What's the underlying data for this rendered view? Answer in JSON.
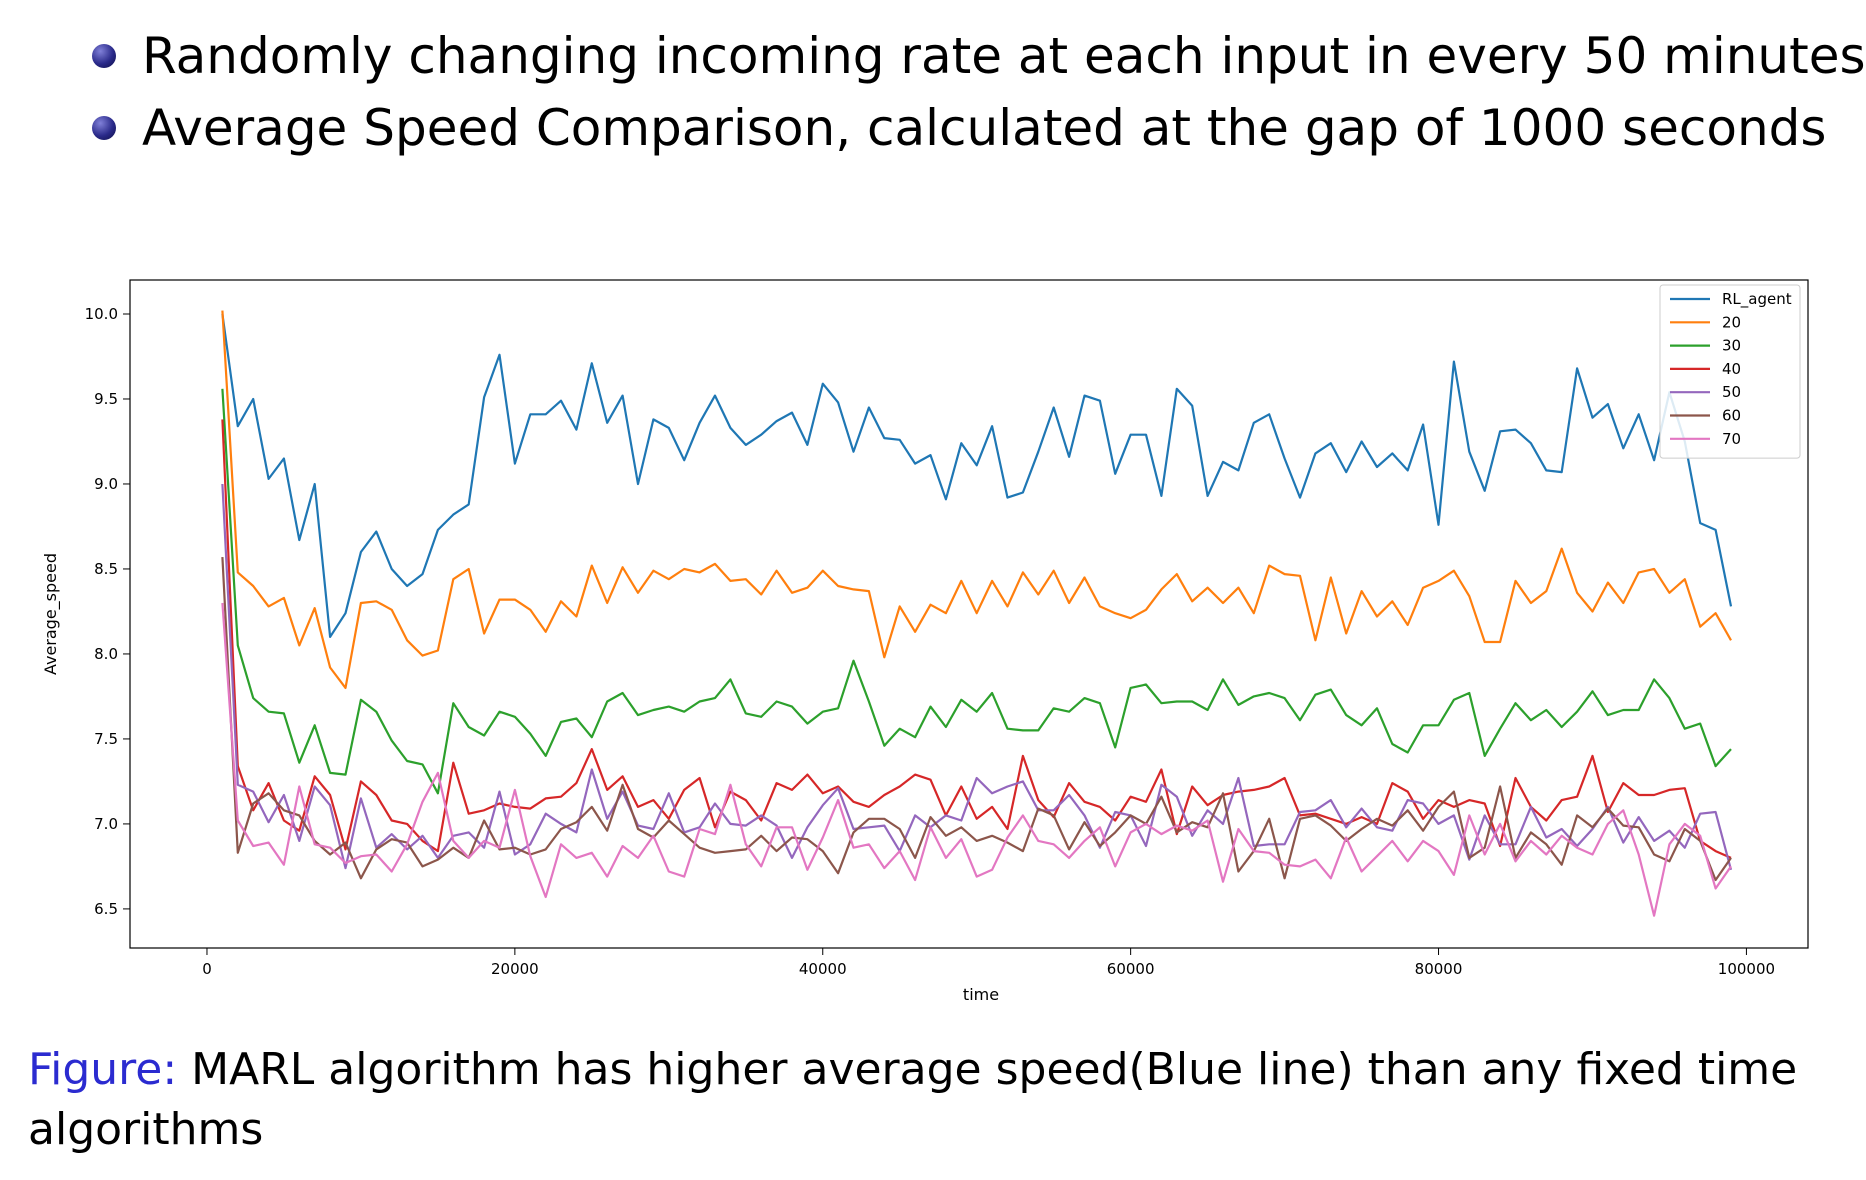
{
  "bullets": [
    "Randomly changing incoming rate at each input in every 50 minutes",
    "Average Speed Comparison, calculated at the gap of 1000 seconds"
  ],
  "caption": {
    "label": "Figure:",
    "text": "MARL algorithm has higher average speed(Blue line) than any fixed time algorithms"
  },
  "chart_data": {
    "type": "line",
    "xlabel": "time",
    "ylabel": "Average_speed",
    "xlim": [
      -5000,
      104000
    ],
    "ylim": [
      6.27,
      10.2
    ],
    "xticks": [
      0,
      20000,
      40000,
      60000,
      80000,
      100000
    ],
    "yticks": [
      6.5,
      7.0,
      7.5,
      8.0,
      8.5,
      9.0,
      9.5,
      10.0
    ],
    "ytick_labels": [
      "6.5",
      "7.0",
      "7.5",
      "8.0",
      "8.5",
      "9.0",
      "9.5",
      "10.0"
    ],
    "grid": false,
    "legend_position": "top-right",
    "x_start": 1000,
    "x_step": 1000,
    "series": [
      {
        "name": "RL_agent",
        "color": "#1f77b4",
        "values": [
          10.0,
          9.34,
          9.5,
          9.03,
          9.15,
          8.67,
          9.0,
          8.1,
          8.24,
          8.6,
          8.72,
          8.5,
          8.4,
          8.47,
          8.73,
          8.82,
          8.88,
          9.51,
          9.76,
          9.12,
          9.41,
          9.41,
          9.49,
          9.32,
          9.71,
          9.36,
          9.52,
          9.0,
          9.38,
          9.33,
          9.14,
          9.36,
          9.52,
          9.33,
          9.23,
          9.29,
          9.37,
          9.42,
          9.23,
          9.59,
          9.48,
          9.19,
          9.45,
          9.27,
          9.26,
          9.12,
          9.17,
          8.91,
          9.24,
          9.11,
          9.34,
          8.92,
          8.95,
          9.19,
          9.45,
          9.16,
          9.52,
          9.49,
          9.06,
          9.29,
          9.29,
          8.93,
          9.56,
          9.46,
          8.93,
          9.13,
          9.08,
          9.36,
          9.41,
          9.15,
          8.92,
          9.18,
          9.24,
          9.07,
          9.25,
          9.1,
          9.18,
          9.08,
          9.35,
          8.76,
          9.72,
          9.19,
          8.96,
          9.31,
          9.32,
          9.24,
          9.08,
          9.07,
          9.68,
          9.39,
          9.47,
          9.21,
          9.41,
          9.14,
          9.54,
          9.25,
          8.77,
          8.73,
          8.28
        ]
      },
      {
        "name": "20",
        "color": "#ff7f0e",
        "values": [
          10.02,
          8.48,
          8.4,
          8.28,
          8.33,
          8.05,
          8.27,
          7.92,
          7.8,
          8.3,
          8.31,
          8.26,
          8.08,
          7.99,
          8.02,
          8.44,
          8.5,
          8.12,
          8.32,
          8.32,
          8.26,
          8.13,
          8.31,
          8.22,
          8.52,
          8.3,
          8.51,
          8.36,
          8.49,
          8.44,
          8.5,
          8.48,
          8.53,
          8.43,
          8.44,
          8.35,
          8.49,
          8.36,
          8.39,
          8.49,
          8.4,
          8.38,
          8.37,
          7.98,
          8.28,
          8.13,
          8.29,
          8.24,
          8.43,
          8.24,
          8.43,
          8.28,
          8.48,
          8.35,
          8.49,
          8.3,
          8.45,
          8.28,
          8.24,
          8.21,
          8.26,
          8.38,
          8.47,
          8.31,
          8.39,
          8.3,
          8.39,
          8.24,
          8.52,
          8.47,
          8.46,
          8.08,
          8.45,
          8.12,
          8.37,
          8.22,
          8.31,
          8.17,
          8.39,
          8.43,
          8.49,
          8.34,
          8.07,
          8.07,
          8.43,
          8.3,
          8.37,
          8.62,
          8.36,
          8.25,
          8.42,
          8.3,
          8.48,
          8.5,
          8.36,
          8.44,
          8.16,
          8.24,
          8.08
        ]
      },
      {
        "name": "30",
        "color": "#2ca02c",
        "values": [
          9.56,
          8.05,
          7.74,
          7.66,
          7.65,
          7.36,
          7.58,
          7.3,
          7.29,
          7.73,
          7.66,
          7.49,
          7.37,
          7.35,
          7.18,
          7.71,
          7.57,
          7.52,
          7.66,
          7.63,
          7.53,
          7.4,
          7.6,
          7.62,
          7.51,
          7.72,
          7.77,
          7.64,
          7.67,
          7.69,
          7.66,
          7.72,
          7.74,
          7.85,
          7.65,
          7.63,
          7.72,
          7.69,
          7.59,
          7.66,
          7.68,
          7.96,
          7.72,
          7.46,
          7.56,
          7.51,
          7.69,
          7.57,
          7.73,
          7.66,
          7.77,
          7.56,
          7.55,
          7.55,
          7.68,
          7.66,
          7.74,
          7.71,
          7.45,
          7.8,
          7.82,
          7.71,
          7.72,
          7.72,
          7.67,
          7.85,
          7.7,
          7.75,
          7.77,
          7.74,
          7.61,
          7.76,
          7.79,
          7.64,
          7.58,
          7.68,
          7.47,
          7.42,
          7.58,
          7.58,
          7.73,
          7.77,
          7.4,
          7.56,
          7.71,
          7.61,
          7.67,
          7.57,
          7.66,
          7.78,
          7.64,
          7.67,
          7.67,
          7.85,
          7.74,
          7.56,
          7.59,
          7.34,
          7.44
        ]
      },
      {
        "name": "40",
        "color": "#d62728",
        "values": [
          9.38,
          7.34,
          7.08,
          7.24,
          7.02,
          6.96,
          7.28,
          7.17,
          6.85,
          7.25,
          7.17,
          7.02,
          7.0,
          6.9,
          6.84,
          7.36,
          7.06,
          7.08,
          7.12,
          7.1,
          7.09,
          7.15,
          7.16,
          7.24,
          7.44,
          7.2,
          7.28,
          7.1,
          7.14,
          7.03,
          7.2,
          7.27,
          6.98,
          7.19,
          7.14,
          7.02,
          7.24,
          7.2,
          7.29,
          7.18,
          7.22,
          7.13,
          7.1,
          7.17,
          7.22,
          7.29,
          7.26,
          7.05,
          7.22,
          7.03,
          7.1,
          6.97,
          7.4,
          7.14,
          7.04,
          7.24,
          7.13,
          7.1,
          7.02,
          7.16,
          7.13,
          7.32,
          6.94,
          7.22,
          7.11,
          7.17,
          7.19,
          7.2,
          7.22,
          7.27,
          7.05,
          7.06,
          7.03,
          7.0,
          7.04,
          7.0,
          7.24,
          7.19,
          7.03,
          7.14,
          7.1,
          7.14,
          7.12,
          6.87,
          7.27,
          7.1,
          7.02,
          7.14,
          7.16,
          7.4,
          7.07,
          7.24,
          7.17,
          7.17,
          7.2,
          7.21,
          6.9,
          6.84,
          6.8
        ]
      },
      {
        "name": "50",
        "color": "#9467bd",
        "values": [
          9.0,
          7.23,
          7.19,
          7.01,
          7.17,
          6.9,
          7.22,
          7.11,
          6.74,
          7.15,
          6.86,
          6.94,
          6.85,
          6.93,
          6.8,
          6.93,
          6.95,
          6.86,
          7.19,
          6.82,
          6.88,
          7.06,
          7.0,
          6.95,
          7.32,
          7.03,
          7.19,
          6.99,
          6.97,
          7.18,
          6.95,
          6.98,
          7.12,
          7.0,
          6.99,
          7.05,
          6.99,
          6.8,
          6.98,
          7.11,
          7.21,
          6.97,
          6.98,
          6.99,
          6.84,
          7.05,
          6.98,
          7.05,
          7.02,
          7.27,
          7.18,
          7.22,
          7.25,
          7.08,
          7.08,
          7.17,
          7.05,
          6.86,
          7.07,
          7.05,
          6.87,
          7.23,
          7.16,
          6.93,
          7.08,
          7.0,
          7.27,
          6.87,
          6.88,
          6.88,
          7.07,
          7.08,
          7.14,
          6.98,
          7.09,
          6.98,
          6.96,
          7.14,
          7.12,
          7.0,
          7.05,
          6.79,
          7.05,
          6.88,
          6.88,
          7.1,
          6.92,
          6.97,
          6.87,
          6.97,
          7.1,
          6.89,
          7.04,
          6.9,
          6.96,
          6.86,
          7.06,
          7.07,
          6.73
        ]
      },
      {
        "name": "60",
        "color": "#8c564b",
        "values": [
          8.57,
          6.83,
          7.12,
          7.18,
          7.08,
          7.05,
          6.9,
          6.82,
          6.89,
          6.68,
          6.85,
          6.91,
          6.89,
          6.75,
          6.79,
          6.86,
          6.8,
          7.02,
          6.85,
          6.86,
          6.82,
          6.85,
          6.97,
          7.01,
          7.1,
          6.96,
          7.23,
          6.97,
          6.92,
          7.02,
          6.94,
          6.86,
          6.83,
          6.84,
          6.85,
          6.93,
          6.84,
          6.92,
          6.91,
          6.84,
          6.71,
          6.95,
          7.03,
          7.03,
          6.97,
          6.8,
          7.04,
          6.93,
          6.98,
          6.9,
          6.93,
          6.89,
          6.84,
          7.09,
          7.05,
          6.85,
          7.01,
          6.87,
          6.95,
          7.05,
          7.0,
          7.16,
          6.95,
          7.01,
          6.98,
          7.18,
          6.72,
          6.84,
          7.03,
          6.68,
          7.03,
          7.05,
          6.99,
          6.9,
          6.97,
          7.03,
          6.99,
          7.08,
          6.96,
          7.1,
          7.19,
          6.8,
          6.86,
          7.22,
          6.8,
          6.95,
          6.88,
          6.76,
          7.05,
          6.98,
          7.09,
          6.99,
          6.98,
          6.82,
          6.78,
          6.97,
          6.9,
          6.67,
          6.8
        ]
      },
      {
        "name": "70",
        "color": "#e377c2",
        "values": [
          8.3,
          7.02,
          6.87,
          6.89,
          6.76,
          7.22,
          6.88,
          6.86,
          6.77,
          6.81,
          6.82,
          6.72,
          6.88,
          7.13,
          7.3,
          6.9,
          6.8,
          6.9,
          6.86,
          7.2,
          6.81,
          6.57,
          6.88,
          6.8,
          6.83,
          6.69,
          6.87,
          6.8,
          6.93,
          6.72,
          6.69,
          6.97,
          6.94,
          7.23,
          6.88,
          6.75,
          6.98,
          6.98,
          6.73,
          6.92,
          7.14,
          6.86,
          6.88,
          6.74,
          6.84,
          6.67,
          6.98,
          6.8,
          6.91,
          6.69,
          6.73,
          6.92,
          7.05,
          6.9,
          6.88,
          6.8,
          6.9,
          6.98,
          6.75,
          6.95,
          7.0,
          6.94,
          6.99,
          6.96,
          7.02,
          6.66,
          6.97,
          6.84,
          6.83,
          6.76,
          6.75,
          6.79,
          6.68,
          6.92,
          6.72,
          6.81,
          6.9,
          6.78,
          6.9,
          6.84,
          6.7,
          7.05,
          6.82,
          7.0,
          6.78,
          6.9,
          6.82,
          6.93,
          6.86,
          6.82,
          7.0,
          7.08,
          6.82,
          6.46,
          6.88,
          7.0,
          6.93,
          6.62,
          6.75
        ]
      }
    ]
  }
}
